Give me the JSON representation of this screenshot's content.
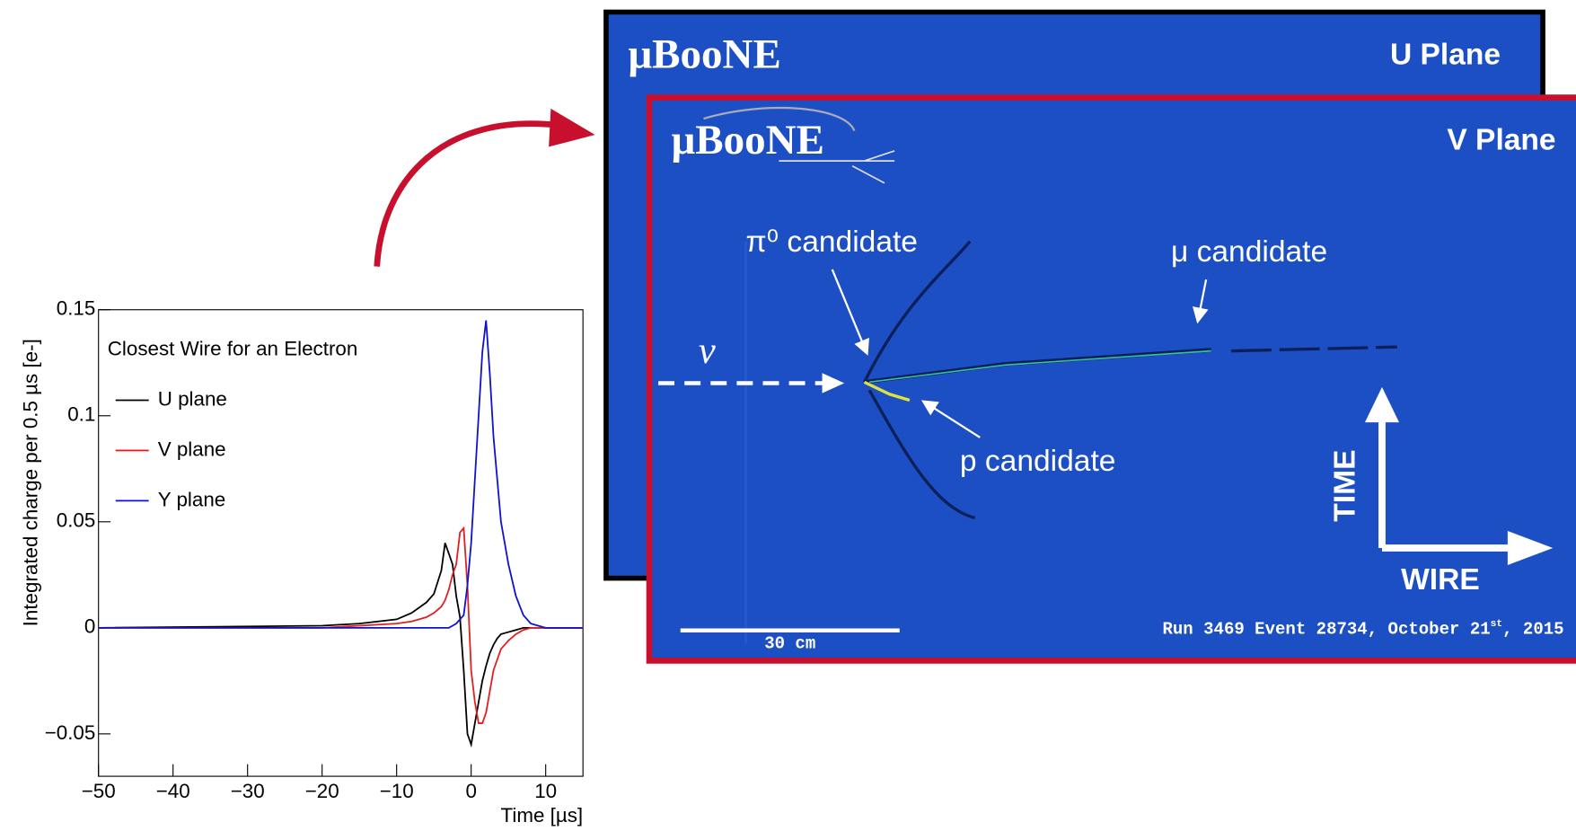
{
  "chart_data": {
    "type": "line",
    "drawstyle": "steps",
    "xlabel": "Time [µs]",
    "ylabel": "Integrated charge per 0.5 µs [e-]",
    "legend_title": "Closest Wire for an Electron",
    "legend": "upper left",
    "x": [
      -50,
      -20,
      -15,
      -10,
      -8,
      -6,
      -5,
      -4,
      -3.5,
      -3,
      -2.5,
      -2,
      -1.5,
      -1,
      -0.5,
      0,
      0.5,
      1,
      1.5,
      2,
      2.5,
      3,
      3.5,
      4,
      5,
      6,
      7,
      8,
      9,
      10,
      15
    ],
    "series": [
      {
        "name": "U plane",
        "color": "#000000",
        "values": [
          0,
          0.001,
          0.002,
          0.004,
          0.007,
          0.012,
          0.016,
          0.027,
          0.04,
          0.035,
          0.03,
          0.015,
          0.005,
          -0.02,
          -0.05,
          -0.055,
          -0.045,
          -0.035,
          -0.025,
          -0.018,
          -0.012,
          -0.008,
          -0.005,
          -0.003,
          -0.002,
          -0.001,
          0,
          0,
          0,
          0,
          0
        ]
      },
      {
        "name": "V plane",
        "color": "#e02020",
        "values": [
          0,
          0,
          0.001,
          0.002,
          0.003,
          0.005,
          0.007,
          0.01,
          0.013,
          0.018,
          0.025,
          0.03,
          0.045,
          0.047,
          0.02,
          -0.02,
          -0.035,
          -0.045,
          -0.045,
          -0.04,
          -0.03,
          -0.02,
          -0.015,
          -0.01,
          -0.006,
          -0.003,
          -0.001,
          0,
          0,
          0,
          0
        ]
      },
      {
        "name": "Y plane",
        "color": "#1010d0",
        "values": [
          0,
          0,
          0,
          0,
          0,
          0,
          0,
          0,
          0,
          0,
          0.001,
          0.002,
          0.004,
          0.006,
          0.02,
          0.04,
          0.07,
          0.1,
          0.13,
          0.145,
          0.12,
          0.09,
          0.07,
          0.05,
          0.03,
          0.015,
          0.006,
          0.002,
          0.001,
          0,
          0
        ]
      }
    ],
    "xlim": [
      -50,
      15
    ],
    "xticks": [
      {
        "value": -50,
        "label": "−50"
      },
      {
        "value": -40,
        "label": "−40"
      },
      {
        "value": -30,
        "label": "−30"
      },
      {
        "value": -20,
        "label": "−20"
      },
      {
        "value": -10,
        "label": "−10"
      },
      0,
      10
    ],
    "ylim": [
      -0.07,
      0.15
    ],
    "yticks": [
      {
        "value": -0.05,
        "label": "−0.05"
      },
      0,
      0.05,
      0.1,
      0.15
    ]
  },
  "event_display": {
    "logo": "μBooNE",
    "u_plane": "U Plane",
    "v_plane": "V Plane",
    "pi0": "π⁰ candidate",
    "mu": "μ candidate",
    "p": "p candidate",
    "nu": "ν",
    "time": "TIME",
    "wire": "WIRE",
    "scale": "30 cm",
    "run_main": "Run 3469 Event 28734, October 21",
    "run_sup": "st",
    "run_end": ", 2015"
  }
}
